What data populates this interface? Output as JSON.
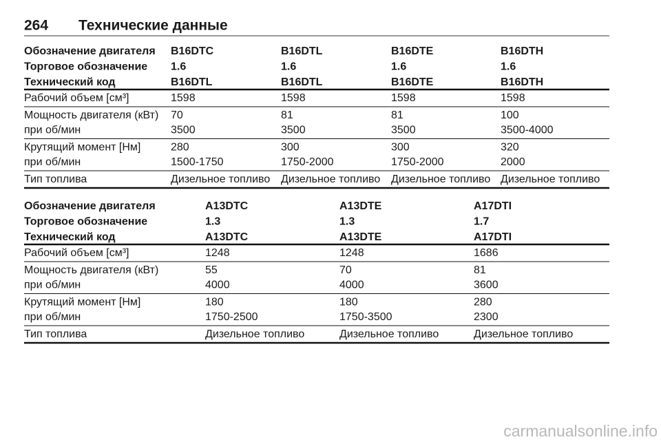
{
  "header": {
    "page": "264",
    "title": "Технические данные"
  },
  "tables": [
    {
      "head": [
        [
          "Обозначение двигателя",
          "B16DTC",
          "B16DTL",
          "B16DTE",
          "B16DTH"
        ],
        [
          "Торговое обозначение",
          "1.6",
          "1.6",
          "1.6",
          "1.6"
        ],
        [
          "Технический код",
          "B16DTL",
          "B16DTL",
          "B16DTE",
          "B16DTH"
        ]
      ],
      "groups": [
        [
          [
            "Рабочий объем [см³]",
            "1598",
            "1598",
            "1598",
            "1598"
          ]
        ],
        [
          [
            "Мощность двигателя (кВт)",
            "70",
            "81",
            "81",
            "100"
          ],
          [
            "при об/мин",
            "3500",
            "3500",
            "3500",
            "3500-4000"
          ]
        ],
        [
          [
            "Крутящий момент [Нм]",
            "280",
            "300",
            "300",
            "320"
          ],
          [
            "при об/мин",
            "1500-1750",
            "1750-2000",
            "1750-2000",
            "2000"
          ]
        ],
        [
          [
            "Тип топлива",
            "Дизельное топливо",
            "Дизельное топливо",
            "Дизельное топливо",
            "Дизельное топливо"
          ]
        ]
      ]
    },
    {
      "head": [
        [
          "Обозначение двигателя",
          "A13DTC",
          "A13DTE",
          "A17DTI"
        ],
        [
          "Торговое обозначение",
          "1.3",
          "1.3",
          "1.7"
        ],
        [
          "Технический код",
          "A13DTC",
          "A13DTE",
          "A17DTI"
        ]
      ],
      "groups": [
        [
          [
            "Рабочий объем [см³]",
            "1248",
            "1248",
            "1686"
          ]
        ],
        [
          [
            "Мощность двигателя (кВт)",
            "55",
            "70",
            "81"
          ],
          [
            "при об/мин",
            "4000",
            "4000",
            "3600"
          ]
        ],
        [
          [
            "Крутящий момент [Нм]",
            "180",
            "180",
            "280"
          ],
          [
            "при об/мин",
            "1750-2500",
            "1750-3500",
            "2300"
          ]
        ],
        [
          [
            "Тип топлива",
            "Дизельное топливо",
            "Дизельное топливо",
            "Дизельное топливо"
          ]
        ]
      ]
    }
  ],
  "watermark": "carmanualsonline.info"
}
